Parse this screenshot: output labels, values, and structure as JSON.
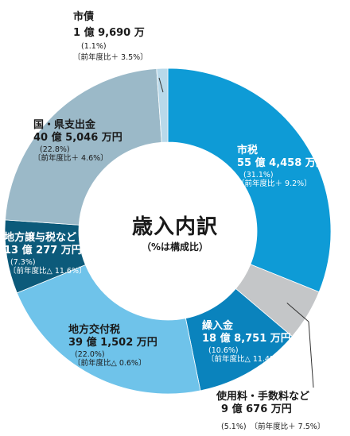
{
  "chart_data": {
    "type": "pie",
    "title": "歳入内訳",
    "subtitle": "（%は構成比）",
    "slices": [
      {
        "key": "shizei",
        "label": "市税",
        "amount": "55 億 4,458 万円",
        "share_text": "(31.1%)",
        "change": "〔前年度比＋ 9.2%〕",
        "value": 31.1,
        "color": "#0e9bd6"
      },
      {
        "key": "shiyoryo",
        "label": "使用料・手数料など",
        "amount": "9 億 676 万円",
        "share_text": "(5.1%)",
        "change": "〔前年度比＋ 7.5%〕",
        "value": 5.1,
        "color": "#c4c6c8"
      },
      {
        "key": "kuriirekin",
        "label": "繰入金",
        "amount": "18 億 8,751 万円",
        "share_text": "(10.6%)",
        "change": "〔前年度比△ 11.4%〕",
        "value": 10.6,
        "color": "#0a83bd"
      },
      {
        "key": "kofuzei",
        "label": "地方交付税",
        "amount": "39 億 1,502 万円",
        "share_text": "(22.0%)",
        "change": "〔前年度比△ 0.6%〕",
        "value": 22.0,
        "color": "#6fc3ea"
      },
      {
        "key": "joyozei",
        "label": "地方譲与税など",
        "amount": "13 億 277 万円",
        "share_text": "(7.3%)",
        "change": "〔前年度比△ 11.6%〕",
        "value": 7.3,
        "color": "#0c5a7a"
      },
      {
        "key": "shishutsu",
        "label": "国・県支出金",
        "amount": "40 億 5,046 万円",
        "share_text": "(22.8%)",
        "change": "〔前年度比＋ 4.6%〕",
        "value": 22.8,
        "color": "#9bb9c8"
      },
      {
        "key": "shisai",
        "label": "市債",
        "amount": "1 億 9,690 万",
        "share_text": "(1.1%)",
        "change": "〔前年度比＋ 3.5%〕",
        "value": 1.1,
        "color": "#b9d9ea"
      }
    ]
  }
}
